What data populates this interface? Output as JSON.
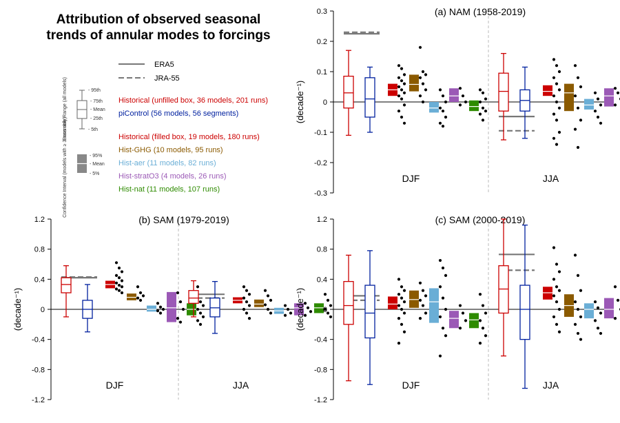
{
  "figure": {
    "title_line1": "Attribution of observed seasonal",
    "title_line2": "trends of annular modes to forcings"
  },
  "legend": {
    "obs": [
      {
        "name": "ERA5",
        "style": "solid",
        "color": "#777777"
      },
      {
        "name": "JRA-55",
        "style": "dashed",
        "color": "#777777"
      }
    ],
    "ensemble_range_label": "Ensemble Range (all models)",
    "ensemble_ticks": [
      "95th",
      "75th",
      "Mean",
      "25th",
      "5th"
    ],
    "ci_label": "Confidence Interval (models with ≥ 3 runs only)",
    "ci_ticks": [
      "95%",
      "Mean",
      "5%"
    ],
    "entries": [
      {
        "text": "Historical (unfilled box, 36 models, 201 runs)",
        "color": "#cc0000"
      },
      {
        "text": "piControl (56 models, 56 segments)",
        "color": "#00209f"
      },
      {
        "text": "Historical (filled box, 19 models, 180 runs)",
        "color": "#cc0000"
      },
      {
        "text": "Hist-GHG (10 models, 95 runs)",
        "color": "#8b5a00"
      },
      {
        "text": "Hist-aer (11 models, 82 runs)",
        "color": "#6aaed6"
      },
      {
        "text": "Hist-stratO3 (4 models, 26 runs)",
        "color": "#9b59b6"
      },
      {
        "text": "Hist-nat (11 models, 107 runs)",
        "color": "#2e8b00"
      }
    ]
  },
  "colors": {
    "hist": "#cc0000",
    "pi": "#00209f",
    "histf": "#cc0000",
    "ghg": "#8b5a00",
    "aer": "#6aaed6",
    "o3": "#9b59b6",
    "nat": "#2e8b00",
    "obs": "#777777"
  },
  "chart_data": [
    {
      "type": "box",
      "id": "a",
      "title": "(a) NAM (1958-2019)",
      "ylabel": "(decade⁻¹)",
      "ylim": [
        -0.3,
        0.3
      ],
      "yticks": [
        "0.3",
        "0.2",
        "0.1",
        "0",
        "-0.1",
        "-0.2",
        "-0.3"
      ],
      "yvals": [
        0.3,
        0.2,
        0.1,
        0,
        -0.1,
        -0.2,
        -0.3
      ],
      "seasons": [
        "DJF",
        "JJA"
      ],
      "obs": {
        "DJF": {
          "ERA5": 0.225,
          "JRA-55": 0.23
        },
        "JJA": {
          "ERA5": -0.048,
          "JRA-55": -0.095
        }
      },
      "groups": [
        {
          "season": "DJF",
          "boxes": [
            {
              "exp": "hist",
              "kind": "range",
              "p5": -0.11,
              "p25": -0.02,
              "mean": 0.03,
              "p75": 0.085,
              "p95": 0.17
            },
            {
              "exp": "pi",
              "kind": "range",
              "p5": -0.1,
              "p25": -0.05,
              "mean": 0.01,
              "p75": 0.08,
              "p95": 0.115
            },
            {
              "exp": "histf",
              "kind": "ci",
              "p5": 0.02,
              "mean": 0.04,
              "p95": 0.06,
              "dots": [
                0.12,
                0.11,
                0.09,
                0.08,
                0.07,
                0.06,
                0.05,
                0.04,
                0.03,
                0.02,
                0.01,
                -0.01,
                -0.03,
                -0.05,
                -0.07
              ]
            },
            {
              "exp": "ghg",
              "kind": "ci",
              "p5": 0.035,
              "mean": 0.058,
              "p95": 0.09,
              "dots": [
                0.18,
                0.1,
                0.09,
                0.08,
                0.06,
                0.04,
                0.02,
                0.0
              ]
            },
            {
              "exp": "aer",
              "kind": "ci",
              "p5": -0.035,
              "mean": -0.02,
              "p95": 0.0,
              "dots": [
                0.04,
                0.02,
                0.0,
                -0.02,
                -0.03,
                -0.05,
                -0.07,
                -0.08
              ]
            },
            {
              "exp": "o3",
              "kind": "ci",
              "p5": 0.0,
              "mean": 0.02,
              "p95": 0.045,
              "dots": [
                0.045,
                0.02,
                0.0,
                -0.01
              ]
            },
            {
              "exp": "nat",
              "kind": "ci",
              "p5": -0.03,
              "mean": -0.015,
              "p95": 0.005,
              "dots": [
                0.04,
                0.03,
                0.01,
                0.0,
                -0.02,
                -0.03,
                -0.04,
                -0.06
              ]
            }
          ]
        },
        {
          "season": "JJA",
          "boxes": [
            {
              "exp": "hist",
              "kind": "range",
              "p5": -0.125,
              "p25": -0.03,
              "mean": 0.035,
              "p75": 0.095,
              "p95": 0.16
            },
            {
              "exp": "pi",
              "kind": "range",
              "p5": -0.12,
              "p25": -0.03,
              "mean": 0.005,
              "p75": 0.04,
              "p95": 0.115
            },
            {
              "exp": "histf",
              "kind": "ci",
              "p5": 0.02,
              "mean": 0.035,
              "p95": 0.055,
              "dots": [
                0.14,
                0.12,
                0.1,
                0.08,
                0.06,
                0.04,
                0.02,
                0.0,
                -0.02,
                -0.04,
                -0.06,
                -0.1,
                -0.12,
                -0.14
              ]
            },
            {
              "exp": "ghg",
              "kind": "ci",
              "p5": -0.03,
              "mean": 0.03,
              "p95": 0.06,
              "dots": [
                0.12,
                0.08,
                0.05,
                0.02,
                -0.02,
                -0.06,
                -0.09,
                -0.15
              ]
            },
            {
              "exp": "aer",
              "kind": "ci",
              "p5": -0.025,
              "mean": -0.01,
              "p95": 0.01,
              "dots": [
                0.03,
                0.01,
                -0.01,
                -0.03,
                -0.05,
                -0.07
              ]
            },
            {
              "exp": "o3",
              "kind": "ci",
              "p5": -0.015,
              "mean": 0.02,
              "p95": 0.045,
              "dots": [
                0.045,
                0.03,
                0.01,
                -0.01
              ]
            },
            {
              "exp": "nat",
              "kind": "ci",
              "p5": -0.005,
              "mean": 0.01,
              "p95": 0.02,
              "dots": [
                0.04,
                0.03,
                0.02,
                0.01,
                -0.01,
                -0.02,
                -0.03
              ]
            }
          ]
        }
      ]
    },
    {
      "type": "box",
      "id": "b",
      "title": "(b) SAM (1979-2019)",
      "ylabel": "(decade⁻¹)",
      "ylim": [
        -1.2,
        1.2
      ],
      "yticks": [
        "1.2",
        "0.8",
        "0.4",
        "0",
        "-0.4",
        "-0.8",
        "-1.2"
      ],
      "yvals": [
        1.2,
        0.8,
        0.4,
        0,
        -0.4,
        -0.8,
        -1.2
      ],
      "seasons": [
        "DJF",
        "JJA"
      ],
      "obs": {
        "DJF": {
          "ERA5": 0.42,
          "JRA-55": 0.43
        },
        "JJA": {
          "ERA5": 0.2,
          "JRA-55": 0.15
        }
      },
      "groups": [
        {
          "season": "DJF",
          "boxes": [
            {
              "exp": "hist",
              "kind": "range",
              "p5": -0.1,
              "p25": 0.22,
              "mean": 0.33,
              "p75": 0.42,
              "p95": 0.58
            },
            {
              "exp": "pi",
              "kind": "range",
              "p5": -0.3,
              "p25": -0.12,
              "mean": 0.0,
              "p75": 0.12,
              "p95": 0.33
            },
            {
              "exp": "histf",
              "kind": "ci",
              "p5": 0.28,
              "mean": 0.33,
              "p95": 0.38,
              "dots": [
                0.62,
                0.55,
                0.5,
                0.45,
                0.42,
                0.38,
                0.35,
                0.32,
                0.3,
                0.27,
                0.25,
                0.22
              ]
            },
            {
              "exp": "ghg",
              "kind": "ci",
              "p5": 0.12,
              "mean": 0.16,
              "p95": 0.21,
              "dots": [
                0.3,
                0.22,
                0.18,
                0.15,
                0.12
              ]
            },
            {
              "exp": "aer",
              "kind": "ci",
              "p5": -0.03,
              "mean": 0.0,
              "p95": 0.05,
              "dots": [
                0.08,
                0.03,
                0.0,
                -0.02,
                -0.05
              ]
            },
            {
              "exp": "o3",
              "kind": "ci",
              "p5": -0.17,
              "mean": 0.02,
              "p95": 0.23,
              "dots": [
                0.22,
                0.1,
                0.0,
                -0.12,
                -0.17
              ]
            },
            {
              "exp": "nat",
              "kind": "ci",
              "p5": -0.08,
              "mean": 0.0,
              "p95": 0.08,
              "dots": [
                0.3,
                0.1,
                0.05,
                0.0,
                -0.05,
                -0.1,
                -0.15,
                -0.2
              ]
            }
          ]
        },
        {
          "season": "JJA",
          "boxes": [
            {
              "exp": "hist",
              "kind": "range",
              "p5": -0.1,
              "p25": 0.08,
              "mean": 0.15,
              "p75": 0.25,
              "p95": 0.38
            },
            {
              "exp": "pi",
              "kind": "range",
              "p5": -0.32,
              "p25": -0.1,
              "mean": 0.02,
              "p75": 0.15,
              "p95": 0.37
            },
            {
              "exp": "histf",
              "kind": "ci",
              "p5": 0.08,
              "mean": 0.12,
              "p95": 0.16,
              "dots": [
                0.3,
                0.25,
                0.2,
                0.15,
                0.1,
                0.05,
                0.0,
                -0.05,
                -0.12
              ]
            },
            {
              "exp": "ghg",
              "kind": "ci",
              "p5": 0.03,
              "mean": 0.07,
              "p95": 0.13,
              "dots": [
                0.25,
                0.18,
                0.12,
                0.06,
                0.0,
                -0.05
              ]
            },
            {
              "exp": "aer",
              "kind": "ci",
              "p5": -0.06,
              "mean": -0.02,
              "p95": 0.02,
              "dots": [
                0.05,
                0.0,
                -0.05,
                -0.08
              ]
            },
            {
              "exp": "o3",
              "kind": "ci",
              "p5": -0.08,
              "mean": 0.02,
              "p95": 0.08,
              "dots": [
                0.08,
                0.02,
                -0.03,
                -0.08
              ]
            },
            {
              "exp": "nat",
              "kind": "ci",
              "p5": -0.05,
              "mean": 0.02,
              "p95": 0.08,
              "dots": [
                0.2,
                0.12,
                0.05,
                0.0,
                -0.05,
                -0.1
              ]
            }
          ]
        }
      ]
    },
    {
      "type": "box",
      "id": "c",
      "title": "(c) SAM (2000-2019)",
      "ylabel": "(decade⁻¹)",
      "ylim": [
        -1.2,
        1.2
      ],
      "yticks": [
        "1.2",
        "0.8",
        "0.4",
        "0",
        "-0.4",
        "-0.8",
        "-1.2"
      ],
      "yvals": [
        1.2,
        0.8,
        0.4,
        0,
        -0.4,
        -0.8,
        -1.2
      ],
      "seasons": [
        "DJF",
        "JJA"
      ],
      "obs": {
        "DJF": {
          "ERA5": 0.18,
          "JRA-55": 0.12
        },
        "JJA": {
          "ERA5": 0.73,
          "JRA-55": 0.52
        }
      },
      "groups": [
        {
          "season": "DJF",
          "boxes": [
            {
              "exp": "hist",
              "kind": "range",
              "p5": -0.95,
              "p25": -0.2,
              "mean": 0.05,
              "p75": 0.37,
              "p95": 0.72
            },
            {
              "exp": "pi",
              "kind": "range",
              "p5": -1.0,
              "p25": -0.38,
              "mean": -0.05,
              "p75": 0.32,
              "p95": 0.78
            },
            {
              "exp": "histf",
              "kind": "ci",
              "p5": 0.0,
              "mean": 0.07,
              "p95": 0.17,
              "dots": [
                0.4,
                0.3,
                0.25,
                0.2,
                0.15,
                0.1,
                0.05,
                0.0,
                -0.05,
                -0.12,
                -0.2,
                -0.3,
                -0.45
              ]
            },
            {
              "exp": "ghg",
              "kind": "ci",
              "p5": 0.02,
              "mean": 0.13,
              "p95": 0.25,
              "dots": [
                0.35,
                0.25,
                0.18,
                0.12,
                0.05,
                -0.05,
                -0.12
              ]
            },
            {
              "exp": "aer",
              "kind": "ci",
              "p5": -0.18,
              "mean": 0.1,
              "p95": 0.28,
              "dots": [
                0.65,
                0.55,
                0.45,
                0.3,
                0.15,
                0.0,
                -0.1,
                -0.25,
                -0.35,
                -0.62
              ]
            },
            {
              "exp": "o3",
              "kind": "ci",
              "p5": -0.25,
              "mean": -0.12,
              "p95": -0.02,
              "dots": [
                0.05,
                -0.05,
                -0.15,
                -0.25
              ]
            },
            {
              "exp": "nat",
              "kind": "ci",
              "p5": -0.25,
              "mean": -0.14,
              "p95": -0.05,
              "dots": [
                0.2,
                0.05,
                -0.05,
                -0.15,
                -0.25,
                -0.35,
                -0.45
              ]
            }
          ]
        },
        {
          "season": "JJA",
          "boxes": [
            {
              "exp": "hist",
              "kind": "range",
              "p5": -0.62,
              "p25": -0.05,
              "mean": 0.27,
              "p75": 0.58,
              "p95": 1.2
            },
            {
              "exp": "pi",
              "kind": "range",
              "p5": -1.05,
              "p25": -0.4,
              "mean": 0.0,
              "p75": 0.32,
              "p95": 1.12
            },
            {
              "exp": "histf",
              "kind": "ci",
              "p5": 0.13,
              "mean": 0.22,
              "p95": 0.3,
              "dots": [
                0.82,
                0.6,
                0.5,
                0.4,
                0.3,
                0.25,
                0.18,
                0.1,
                0.0,
                -0.1,
                -0.2,
                -0.3
              ]
            },
            {
              "exp": "ghg",
              "kind": "ci",
              "p5": -0.1,
              "mean": 0.05,
              "p95": 0.2,
              "dots": [
                0.72,
                0.45,
                0.25,
                0.1,
                0.0,
                -0.1,
                -0.2,
                -0.32,
                -0.4
              ]
            },
            {
              "exp": "aer",
              "kind": "ci",
              "p5": -0.12,
              "mean": 0.0,
              "p95": 0.08,
              "dots": [
                0.1,
                0.02,
                -0.05,
                -0.15,
                -0.25,
                -0.32
              ]
            },
            {
              "exp": "o3",
              "kind": "ci",
              "p5": -0.12,
              "mean": 0.0,
              "p95": 0.15,
              "dots": [
                0.3,
                0.12,
                0.0,
                -0.12
              ]
            },
            {
              "exp": "nat",
              "kind": "ci",
              "p5": -0.08,
              "mean": 0.0,
              "p95": 0.1,
              "dots": [
                0.25,
                0.15,
                0.08,
                0.0,
                -0.08,
                -0.15,
                -0.22,
                -0.3
              ]
            }
          ]
        }
      ]
    }
  ]
}
